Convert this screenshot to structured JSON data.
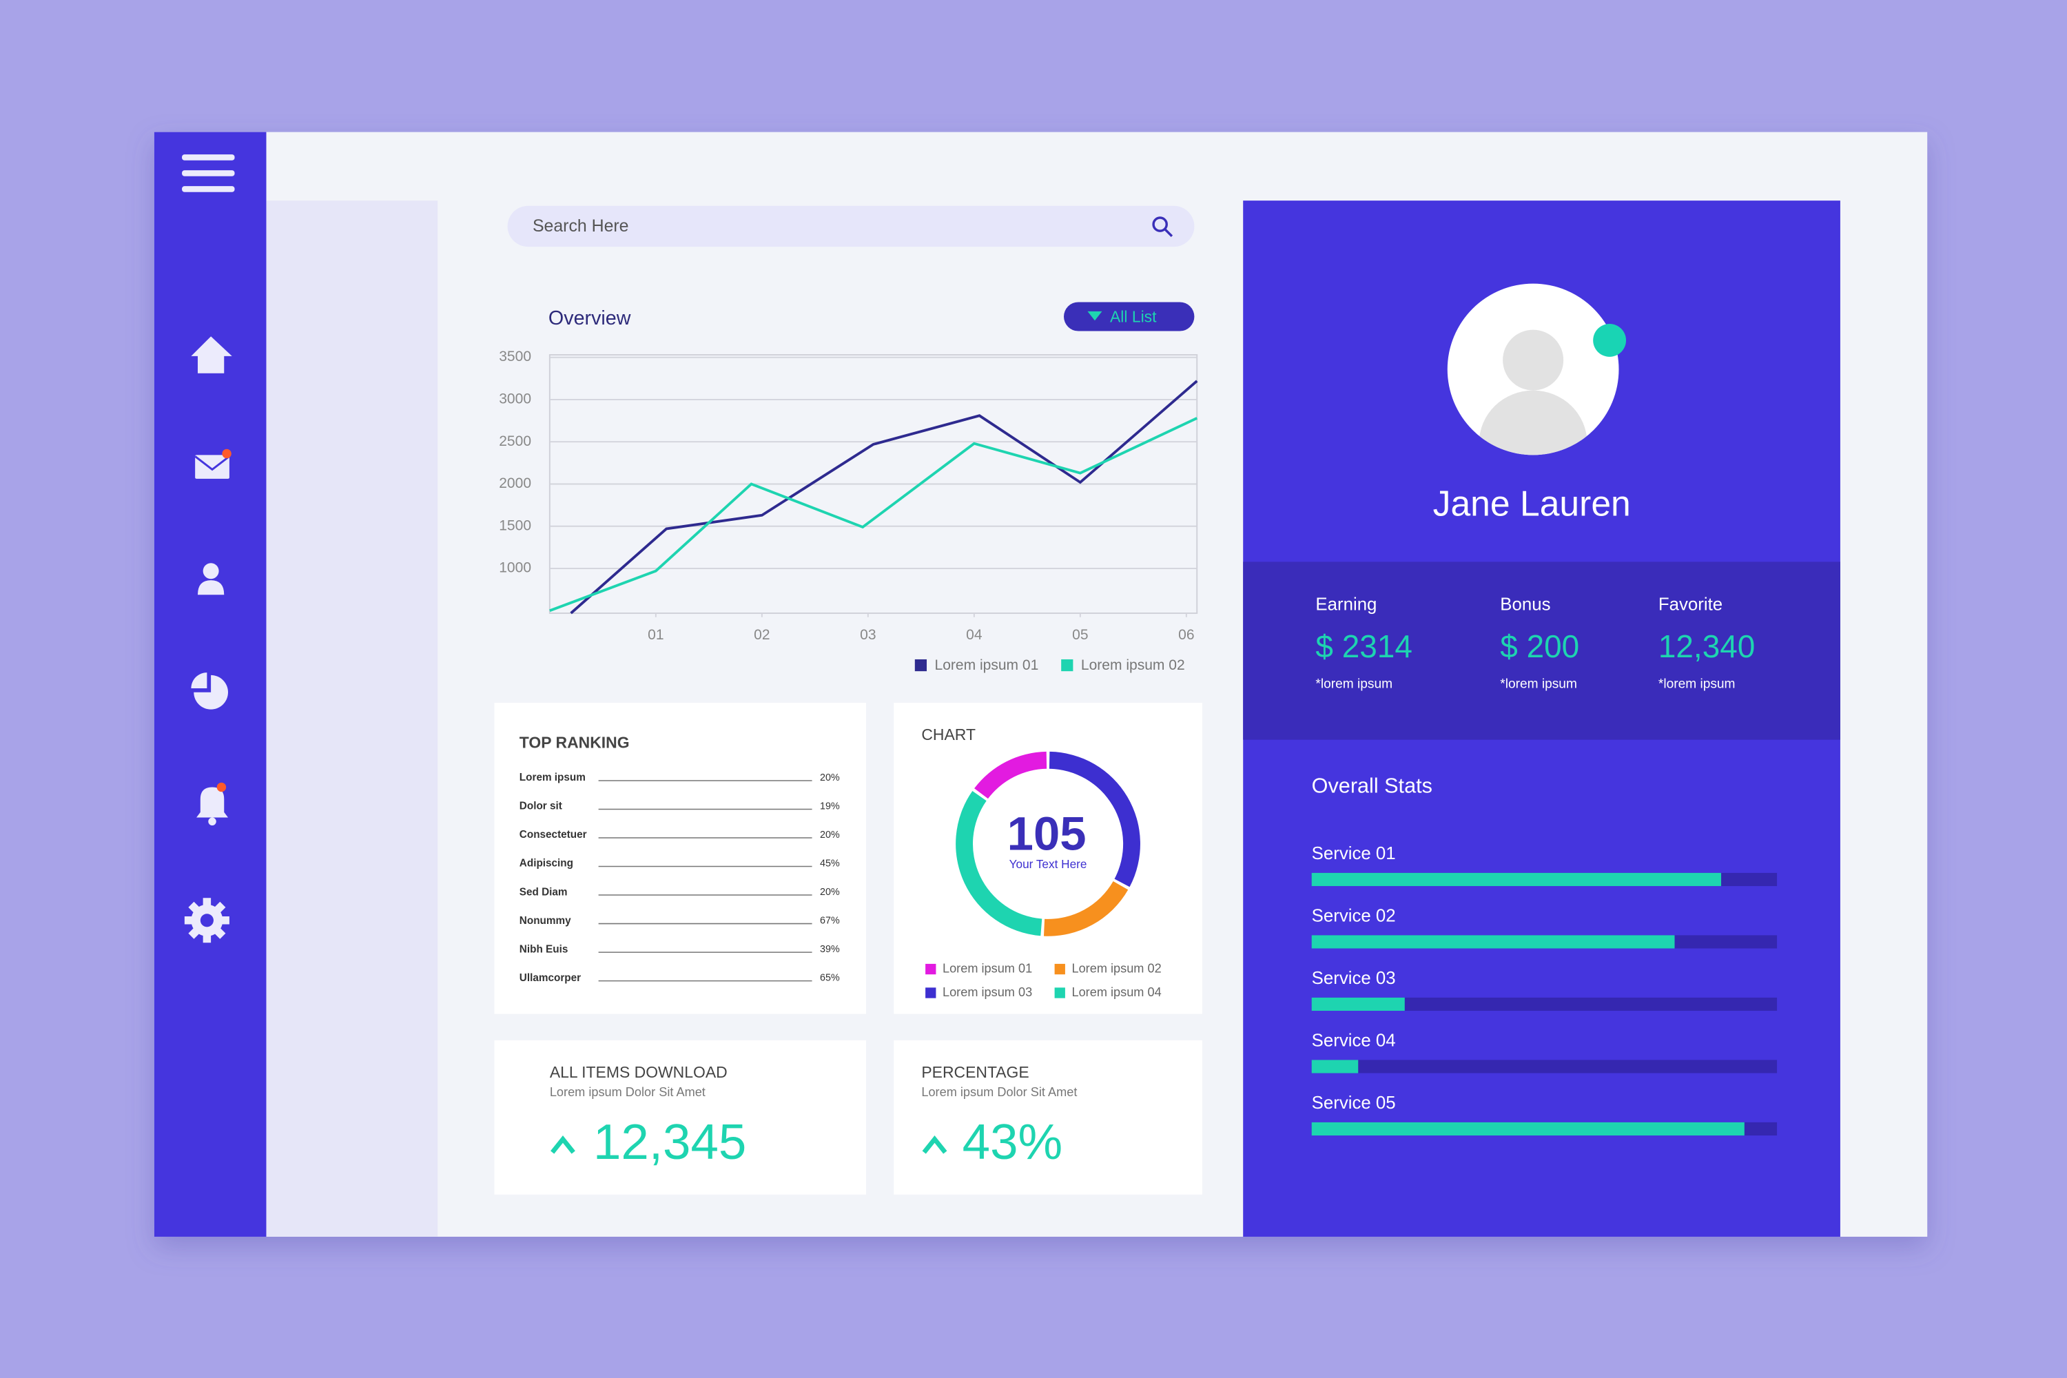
{
  "search": {
    "placeholder": "Search Here"
  },
  "overview": {
    "title": "Overview",
    "button": "All List",
    "xlim": [
      0,
      6.1
    ],
    "ylim": [
      470,
      3530
    ],
    "yticks": [
      1000,
      1500,
      2000,
      2500,
      3000,
      3500
    ],
    "xticks": [
      {
        "value": 1,
        "label": "01"
      },
      {
        "value": 2,
        "label": "02"
      },
      {
        "value": 3,
        "label": "03"
      },
      {
        "value": 4,
        "label": "04"
      },
      {
        "value": 5,
        "label": "05"
      },
      {
        "value": 6,
        "label": "06"
      }
    ],
    "grid": true,
    "series": [
      {
        "name": "Lorem ipsum 01",
        "color": "#2e2a8f",
        "x": [
          0.2,
          1.1,
          2,
          3.05,
          4.05,
          5,
          6.1
        ],
        "values": [
          470,
          1470,
          1630,
          2470,
          2810,
          2020,
          3220
        ]
      },
      {
        "name": "Lorem ipsum 02",
        "color": "#1ed4b0",
        "x": [
          0,
          1,
          1.9,
          2.95,
          4,
          5,
          6.1
        ],
        "values": [
          500,
          970,
          2000,
          1490,
          2480,
          2130,
          2780
        ]
      }
    ]
  },
  "top_ranking": {
    "title": "TOP RANKING",
    "rows": [
      {
        "label": "Lorem ipsum",
        "value": "20%"
      },
      {
        "label": "Dolor sit",
        "value": "19%"
      },
      {
        "label": "Consectetuer",
        "value": "20%"
      },
      {
        "label": "Adipiscing",
        "value": "45%"
      },
      {
        "label": "Sed Diam",
        "value": "20%"
      },
      {
        "label": "Nonummy",
        "value": "67%"
      },
      {
        "label": "Nibh Euis",
        "value": "39%"
      },
      {
        "label": "Ullamcorper",
        "value": "65%"
      }
    ]
  },
  "donut": {
    "title": "CHART",
    "center_value": 105,
    "center_text": "Your Text Here",
    "segments": [
      {
        "name": "Lorem ipsum 01",
        "color": "#e21be0",
        "value": 15
      },
      {
        "name": "Lorem ipsum 02",
        "color": "#f7901e",
        "value": 18
      },
      {
        "name": "Lorem ipsum 03",
        "color": "#3d2fd0",
        "value": 33
      },
      {
        "name": "Lorem ipsum 04",
        "color": "#1ed4b0",
        "value": 34
      }
    ]
  },
  "downloads": {
    "title": "ALL ITEMS DOWNLOAD",
    "subtitle": "Lorem ipsum Dolor Sit Amet",
    "value": "12,345"
  },
  "percentage": {
    "title": "PERCENTAGE",
    "subtitle": "Lorem ipsum Dolor Sit Amet",
    "value": "43%"
  },
  "profile": {
    "name": "Jane Lauren",
    "stats": [
      {
        "label": "Earning",
        "value": "$ 2314",
        "note": "*lorem ipsum"
      },
      {
        "label": "Bonus",
        "value": "$ 200",
        "note": "*lorem ipsum"
      },
      {
        "label": "Favorite",
        "value": "12,340",
        "note": "*lorem ipsum"
      }
    ]
  },
  "overall_stats": {
    "title": "Overall Stats",
    "xlim": [
      0,
      100
    ],
    "services": [
      {
        "label": "Service 01",
        "value": 88
      },
      {
        "label": "Service 02",
        "value": 78
      },
      {
        "label": "Service 03",
        "value": 20
      },
      {
        "label": "Service 04",
        "value": 10
      },
      {
        "label": "Service 05",
        "value": 93
      }
    ]
  }
}
